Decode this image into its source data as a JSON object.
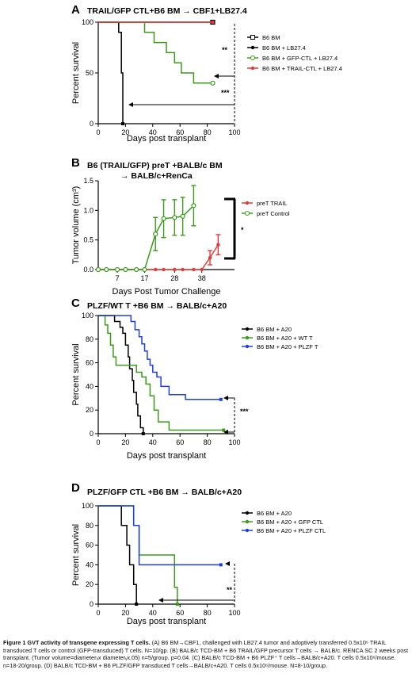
{
  "panels": [
    {
      "letter": "A",
      "title": "TRAIL/GFP CTL+B6 BM → CBF1+LB27.4",
      "chart_data": {
        "type": "line",
        "subtype": "kaplan-meier",
        "xlabel": "Days post transplant",
        "ylabel": "Percent survival",
        "xlim": [
          0,
          100
        ],
        "ylim": [
          0,
          100
        ],
        "xticks": [
          0,
          20,
          40,
          60,
          80,
          100
        ],
        "yticks": [
          0,
          50,
          100
        ],
        "legend_position": "right",
        "series": [
          {
            "name": "B6 BM",
            "color": "#000000",
            "marker": "square-open",
            "x": [
              0,
              84
            ],
            "y": [
              100,
              100
            ]
          },
          {
            "name": "B6 BM + LB27.4",
            "color": "#000000",
            "marker": "filled",
            "x": [
              0,
              15,
              15,
              17,
              17,
              18,
              18
            ],
            "y": [
              100,
              100,
              90,
              90,
              50,
              50,
              0
            ]
          },
          {
            "name": "B6 BM + GFP-CTL + LB27.4",
            "color": "#3a9a1a",
            "marker": "circle-open",
            "x": [
              0,
              34,
              34,
              41,
              41,
              50,
              50,
              56,
              56,
              61,
              61,
              70,
              70,
              78,
              78,
              84
            ],
            "y": [
              100,
              100,
              90,
              90,
              80,
              80,
              70,
              70,
              60,
              60,
              50,
              50,
              40,
              40,
              40,
              40
            ]
          },
          {
            "name": "B6 BM + TRAIL-CTL + LB27.4",
            "color": "#e03a3a",
            "marker": "filled",
            "x": [
              0,
              84
            ],
            "y": [
              100,
              100
            ]
          }
        ],
        "annotations": [
          "**",
          "***"
        ]
      }
    },
    {
      "letter": "B",
      "title": "B6 (TRAIL/GFP) preT +BALB/c BM → BALB/c+RenCa",
      "chart_data": {
        "type": "line",
        "xlabel": "Days Post Tumor Challenge",
        "ylabel": "Tumor volume (cm³)",
        "xlim": [
          0,
          50
        ],
        "ylim": [
          0,
          1.5
        ],
        "xticks": [
          7,
          17,
          28,
          38
        ],
        "yticks": [
          0,
          0.5,
          1.0,
          1.5
        ],
        "legend_position": "right",
        "series": [
          {
            "name": "preT TRAIL",
            "color": "#e03a3a",
            "marker": "filled",
            "x": [
              0,
              3,
              7,
              10,
              14,
              17,
              21,
              24,
              28,
              31,
              35,
              38,
              41,
              44
            ],
            "y": [
              0,
              0,
              0,
              0,
              0,
              0,
              0,
              0,
              0,
              0,
              0,
              0,
              0.2,
              0.42
            ],
            "error": [
              0,
              0,
              0,
              0,
              0,
              0,
              0,
              0,
              0,
              0,
              0,
              0,
              0.12,
              0.17
            ]
          },
          {
            "name": "preT Control",
            "color": "#3a9a1a",
            "marker": "circle-open",
            "x": [
              0,
              3,
              7,
              10,
              14,
              17,
              21,
              24,
              28,
              31,
              35
            ],
            "y": [
              0,
              0,
              0,
              0,
              0,
              0,
              0.6,
              0.86,
              0.88,
              0.9,
              1.08
            ],
            "error": [
              0,
              0,
              0,
              0,
              0,
              0,
              0.28,
              0.32,
              0.3,
              0.32,
              0.34
            ]
          }
        ],
        "annotations": [
          "*"
        ]
      }
    },
    {
      "letter": "C",
      "title": "PLZF/WT T +B6 BM → BALB/c+A20",
      "chart_data": {
        "type": "line",
        "subtype": "kaplan-meier",
        "xlabel": "Days post transplant",
        "ylabel": "Percent survival",
        "xlim": [
          0,
          100
        ],
        "ylim": [
          0,
          100
        ],
        "xticks": [
          0,
          20,
          40,
          60,
          80,
          100
        ],
        "yticks": [
          0,
          20,
          40,
          60,
          80,
          100
        ],
        "legend_position": "right",
        "series": [
          {
            "name": "B6 BM + A20",
            "color": "#000000",
            "marker": "filled",
            "x": [
              0,
              12,
              12,
              16,
              16,
              18,
              18,
              20,
              20,
              22,
              22,
              23,
              23,
              25,
              25,
              26,
              26,
              28,
              28,
              29,
              29,
              31,
              31,
              33,
              33
            ],
            "y": [
              100,
              100,
              95,
              95,
              90,
              90,
              85,
              85,
              75,
              75,
              65,
              65,
              55,
              55,
              45,
              45,
              35,
              35,
              25,
              25,
              15,
              15,
              5,
              5,
              0
            ]
          },
          {
            "name": "B6 BM + A20 + WT T",
            "color": "#3a9a1a",
            "marker": "filled",
            "x": [
              0,
              5,
              5,
              7,
              7,
              9,
              9,
              11,
              11,
              13,
              13,
              28,
              28,
              32,
              32,
              35,
              35,
              38,
              38,
              41,
              41,
              44,
              44,
              52,
              52,
              92
            ],
            "y": [
              100,
              100,
              92,
              92,
              85,
              85,
              75,
              75,
              65,
              65,
              58,
              58,
              52,
              52,
              48,
              48,
              42,
              42,
              32,
              32,
              20,
              20,
              10,
              10,
              3,
              3
            ]
          },
          {
            "name": "B6 BM + A20 + PLZF T",
            "color": "#1f3fe0",
            "marker": "filled",
            "x": [
              0,
              24,
              24,
              27,
              27,
              30,
              30,
              32,
              32,
              34,
              34,
              36,
              36,
              38,
              38,
              40,
              40,
              43,
              43,
              46,
              46,
              52,
              52,
              64,
              64,
              90
            ],
            "y": [
              100,
              100,
              95,
              95,
              88,
              88,
              82,
              82,
              76,
              76,
              70,
              70,
              63,
              63,
              58,
              58,
              52,
              52,
              48,
              48,
              40,
              40,
              33,
              33,
              29,
              29
            ]
          }
        ],
        "annotations": [
          "***"
        ]
      }
    },
    {
      "letter": "D",
      "title": "PLZF/GFP CTL +B6 BM → BALB/c+A20",
      "chart_data": {
        "type": "line",
        "subtype": "kaplan-meier",
        "xlabel": "Days post transplant",
        "ylabel": "Percent survival",
        "xlim": [
          0,
          100
        ],
        "ylim": [
          0,
          100
        ],
        "xticks": [
          0,
          20,
          40,
          60,
          80,
          100
        ],
        "yticks": [
          0,
          20,
          40,
          60,
          80,
          100
        ],
        "legend_position": "right",
        "series": [
          {
            "name": "B6 BM + A20",
            "color": "#000000",
            "marker": "filled",
            "x": [
              0,
              17,
              17,
              21,
              21,
              23,
              23,
              26,
              26,
              28,
              28
            ],
            "y": [
              100,
              100,
              80,
              80,
              60,
              60,
              40,
              40,
              20,
              20,
              0
            ]
          },
          {
            "name": "B6 BM + A20 + GFP CTL",
            "color": "#3a9a1a",
            "marker": "filled",
            "x": [
              0,
              26,
              26,
              30,
              30,
              56,
              56,
              58,
              58
            ],
            "y": [
              100,
              100,
              80,
              80,
              50,
              50,
              17,
              17,
              0
            ]
          },
          {
            "name": "B6 BM + A20 + PLZF CTL",
            "color": "#1f3fe0",
            "marker": "filled",
            "x": [
              0,
              26,
              26,
              30,
              30,
              90
            ],
            "y": [
              100,
              100,
              80,
              80,
              40,
              40
            ]
          }
        ],
        "annotations": [
          "**"
        ]
      }
    }
  ],
  "caption": {
    "bold": "Figure 1 GVT activity of transgene expressing T cells.",
    "text": "(A) B6 BM→CBF1, challenged with LB27.4 tumor and adoptively transferred 0.5x10⁶ TRAIL transduced T cells or control (GFP-transduced) T cells. N=10/gp. (B) BALB/c TCD-BM + B6 TRAIL/GFP precursor T cells → BALB/c. RENCA SC 2 weeks post transplant. (Tumor volume=diameterₓx diameterᵧx.05) n=5/group. p=0.04. (C) BALB/c TCD-BM + B6 PLZF⁺ T cells→BALB/c+A20. T cells 0.5x10⁶/mouse. n=18-20/group. (D) BALB/c TCD-BM + B6 PLZF/GFP transduced T cells→BALB/c+A20. T cells 0.5x10⁶/mouse. N=8-10/group."
  }
}
